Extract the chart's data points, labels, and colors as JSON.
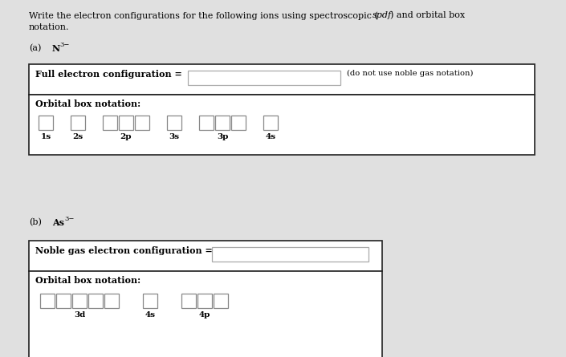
{
  "bg_color": "#e0e0e0",
  "fig_w": 7.05,
  "fig_h": 4.45,
  "dpi": 100,
  "font_family": "DejaVu Serif",
  "fs_body": 8.0,
  "fs_bold": 8.0,
  "fs_small": 7.2,
  "fs_label": 7.5,
  "fs_sup": 6.0,
  "header_line1": "Write the electron configurations for the following ions using spectroscopic (",
  "header_italic": "spdf",
  "header_line1b": ") and orbital box",
  "header_line2": "notation.",
  "part_a_label": "(a)",
  "part_a_ion": "N",
  "part_a_sup": "3−",
  "part_b_label": "(b)",
  "part_b_ion": "As",
  "part_b_sup": "3−",
  "label_full_config": "Full electron configuration =",
  "label_noble_config": "Noble gas electron configuration =",
  "label_orbital": "Orbital box notation:",
  "note_a": "(do not use noble gas notation)",
  "orb_a": [
    "1s",
    "2s",
    "2p",
    "3s",
    "3p",
    "4s"
  ],
  "cnt_a": [
    1,
    1,
    3,
    1,
    3,
    1
  ],
  "orb_b": [
    "3d",
    "4s",
    "4p"
  ],
  "cnt_b": [
    5,
    1,
    3
  ],
  "panel_color": "white",
  "panel_edge": "#222222",
  "input_edge": "#aaaaaa",
  "box_edge": "#888888"
}
